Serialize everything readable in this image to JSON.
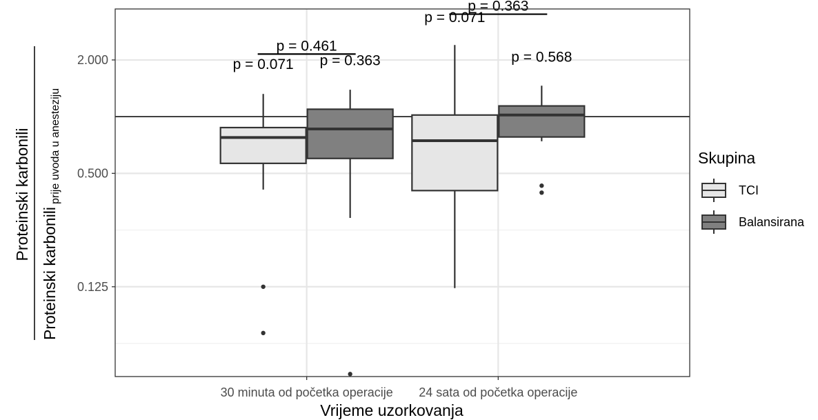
{
  "chart_data": {
    "type": "box",
    "xlabel": "Vrijeme uzorkovanja",
    "ylabel_main": "Proteinski karbonili",
    "ylabel_denominator": "Proteinski karbonili",
    "ylabel_subscript": "prije uvoda u anesteziju",
    "y_scale": "log2",
    "ylim": [
      0.0417,
      3.73
    ],
    "y_ticks": [
      0.125,
      0.5,
      2.0
    ],
    "y_tick_labels": [
      "0.125",
      "0.500",
      "2.000"
    ],
    "reference_line": 1.0,
    "grid": true,
    "categories": [
      "30 minuta od početka operacije",
      "24 sata od početka operacije"
    ],
    "series": [
      {
        "name": "TCI",
        "color": "#e6e6e6",
        "boxes": [
          {
            "whisker_low": 0.41,
            "q1": 0.565,
            "median": 0.775,
            "q3": 0.875,
            "whisker_high": 1.32,
            "outliers": [
              0.125,
              0.071
            ]
          },
          {
            "whisker_low": 0.123,
            "q1": 0.405,
            "median": 0.745,
            "q3": 1.02,
            "whisker_high": 2.4,
            "outliers": []
          }
        ]
      },
      {
        "name": "Balansirana",
        "color": "#808080",
        "boxes": [
          {
            "whisker_low": 0.29,
            "q1": 0.6,
            "median": 0.86,
            "q3": 1.095,
            "whisker_high": 1.39,
            "outliers": [
              0.043
            ]
          },
          {
            "whisker_low": 0.74,
            "q1": 0.78,
            "median": 1.02,
            "q3": 1.14,
            "whisker_high": 1.46,
            "outliers": [
              0.43,
              0.395
            ]
          }
        ]
      }
    ],
    "annotations": [
      {
        "text": "p = 0.071",
        "category": 0,
        "group": 0,
        "y": 1.72
      },
      {
        "text": "p = 0.363",
        "category": 0,
        "group": 1,
        "y": 1.8
      },
      {
        "text": "p = 0.461",
        "category": 0,
        "group": "bracket",
        "y": 2.15
      },
      {
        "text": "p = 0.071",
        "category": 1,
        "group": 0,
        "y": 3.05
      },
      {
        "text": "p = 0.568",
        "category": 1,
        "group": 1,
        "y": 1.88
      },
      {
        "text": "p = 0.363",
        "category": 1,
        "group": "bracket",
        "y": 3.5
      }
    ],
    "brackets": [
      {
        "category": 0,
        "y": 2.15
      },
      {
        "category": 1,
        "y": 3.5
      }
    ],
    "legend": {
      "title": "Skupina",
      "position": "right",
      "items": [
        {
          "label": "TCI",
          "color": "#e6e6e6"
        },
        {
          "label": "Balansirana",
          "color": "#808080"
        }
      ]
    }
  }
}
